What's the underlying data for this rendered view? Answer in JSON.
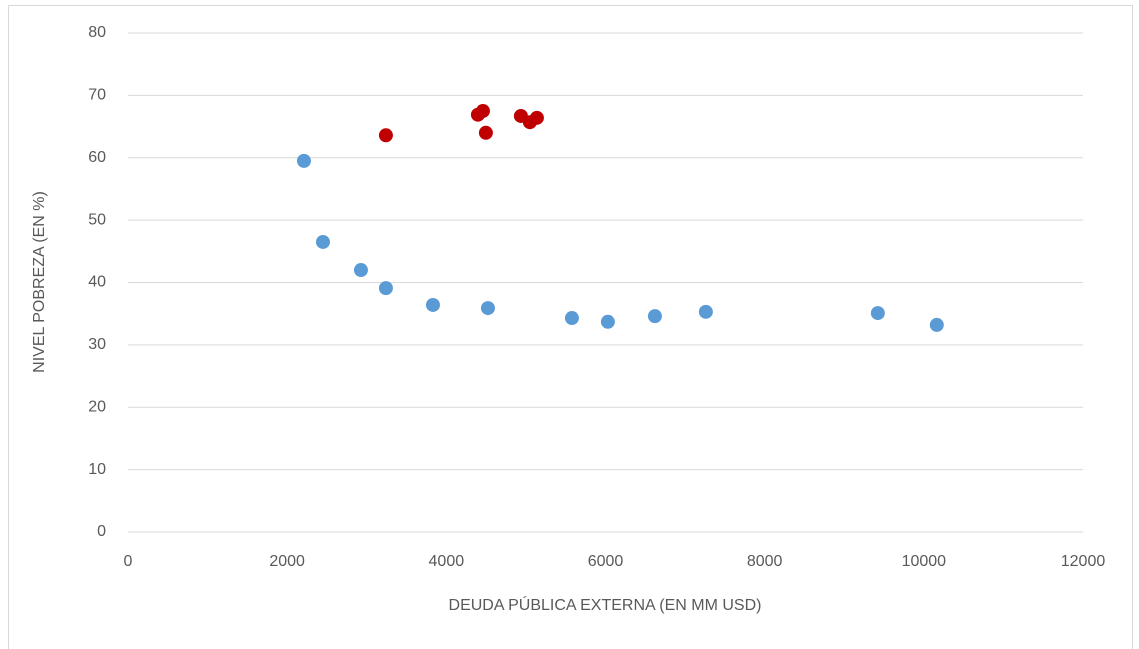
{
  "chart_data": {
    "type": "scatter",
    "x_label": "DEUDA PÚBLICA EXTERNA (EN MM USD)",
    "y_label": "NIVEL POBREZA (EN %)",
    "xlim": [
      0,
      12000
    ],
    "xticks": [
      0,
      2000,
      4000,
      6000,
      8000,
      10000,
      12000
    ],
    "ylim": [
      0,
      80
    ],
    "yticks": [
      0,
      10,
      20,
      30,
      40,
      50,
      60,
      70,
      80
    ],
    "grid": true,
    "series": [
      {
        "color": "#5b9bd5",
        "x": [
          2211,
          2450,
          2927,
          3241,
          3832,
          4523,
          5578,
          6030,
          6621,
          7261,
          9422,
          10163
        ],
        "values": [
          59.5,
          46.5,
          42.0,
          39.1,
          36.4,
          35.9,
          34.3,
          33.7,
          34.6,
          35.3,
          35.1,
          33.2
        ]
      },
      {
        "color": "#c00000",
        "x": [
          3241,
          4397,
          4460,
          4497,
          4937,
          5050,
          5138
        ],
        "values": [
          63.6,
          66.9,
          67.5,
          64.0,
          66.7,
          65.7,
          66.4
        ]
      }
    ]
  }
}
